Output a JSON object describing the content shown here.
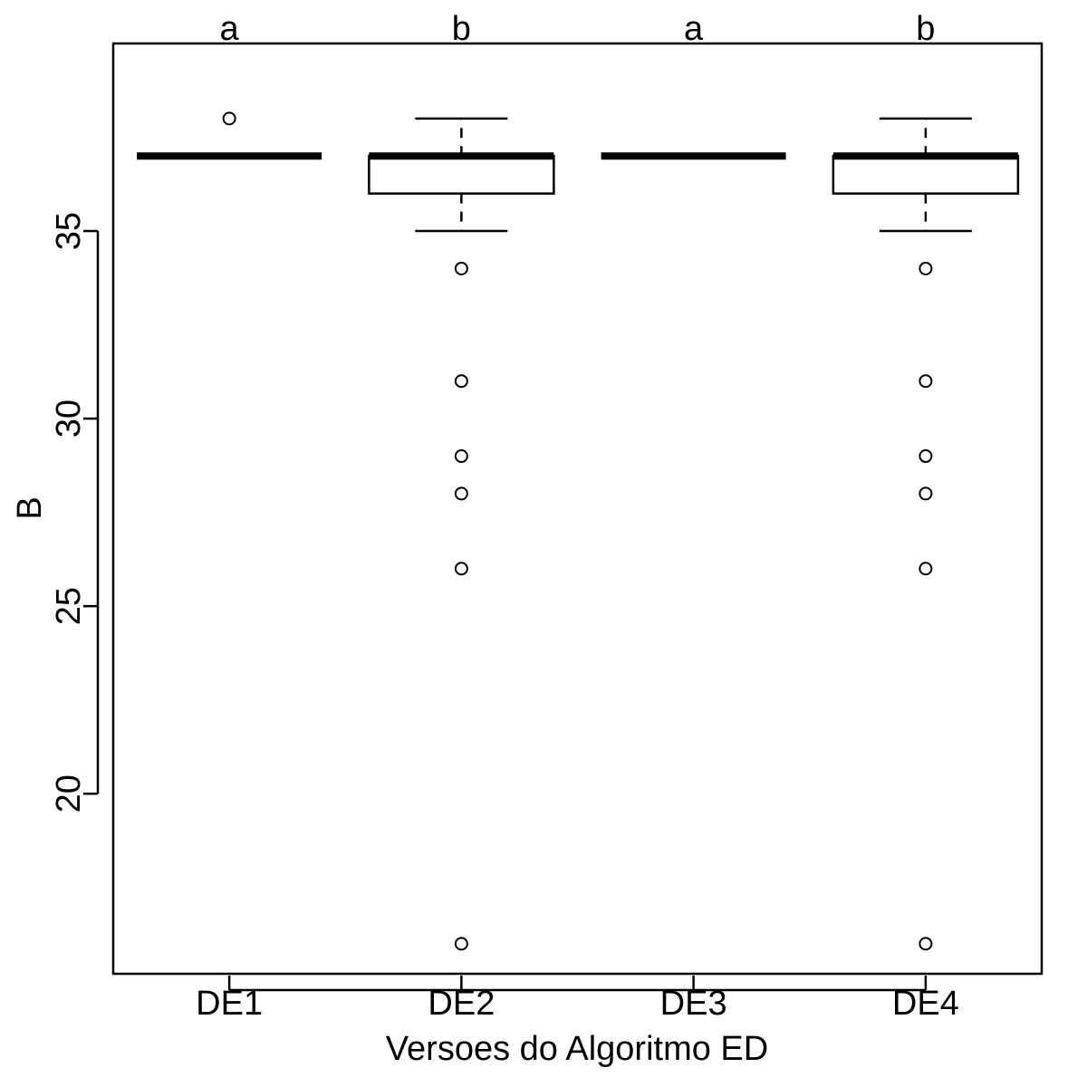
{
  "chart_data": {
    "type": "box",
    "title": "",
    "xlabel": "Versoes do Algoritmo ED",
    "ylabel": "B",
    "ylim": [
      15.2,
      40.0
    ],
    "yticks": [
      20,
      25,
      30,
      35
    ],
    "grid": false,
    "categories": [
      "DE1",
      "DE2",
      "DE3",
      "DE4"
    ],
    "group_letters": [
      "a",
      "b",
      "a",
      "b"
    ],
    "boxes": [
      {
        "q1": 37,
        "median": 37,
        "q3": 37,
        "whisker_low": 37,
        "whisker_high": 37,
        "outliers": [
          38
        ]
      },
      {
        "q1": 36,
        "median": 37,
        "q3": 37,
        "whisker_low": 35,
        "whisker_high": 38,
        "outliers": [
          34,
          31,
          29,
          28,
          26,
          16
        ]
      },
      {
        "q1": 37,
        "median": 37,
        "q3": 37,
        "whisker_low": 37,
        "whisker_high": 37,
        "outliers": []
      },
      {
        "q1": 36,
        "median": 37,
        "q3": 37,
        "whisker_low": 35,
        "whisker_high": 38,
        "outliers": [
          34,
          31,
          29,
          28,
          26,
          16
        ]
      }
    ]
  }
}
